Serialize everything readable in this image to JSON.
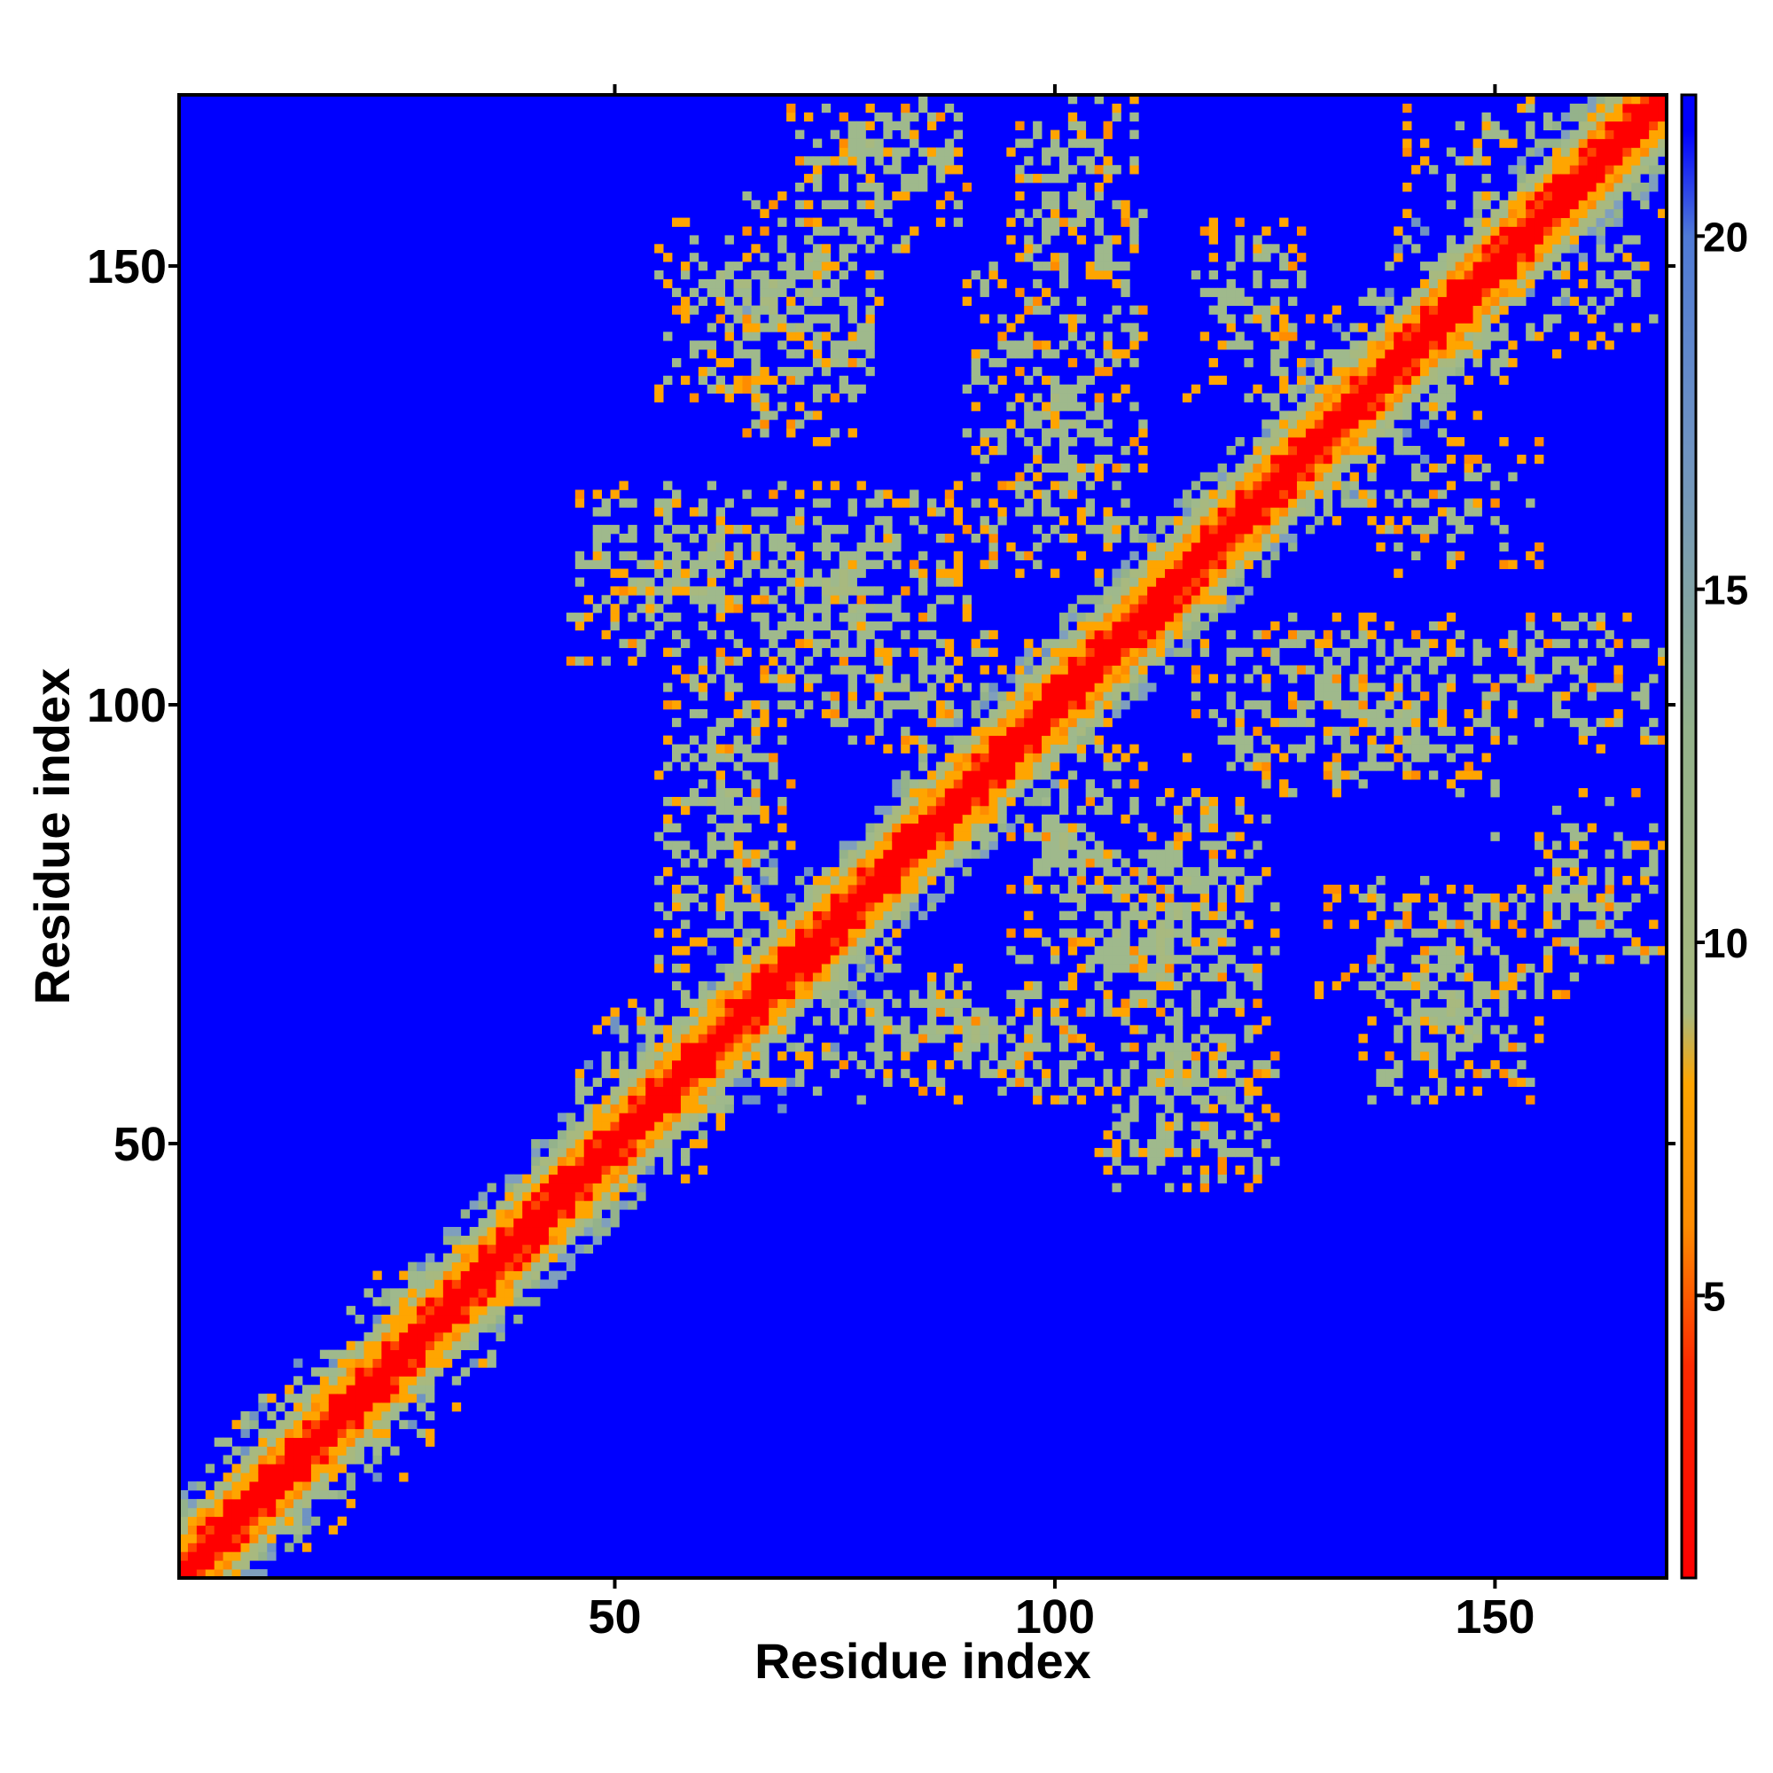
{
  "chart_data": {
    "type": "heatmap",
    "title": "",
    "xlabel": "Residue index",
    "ylabel": "Residue index",
    "xlim": [
      1,
      169
    ],
    "ylim": [
      1,
      169
    ],
    "x_ticks": [
      50,
      100,
      150
    ],
    "y_ticks": [
      50,
      100,
      150
    ],
    "colorbar": {
      "ticks": [
        5,
        10,
        15,
        20
      ],
      "range": [
        1,
        22
      ],
      "stops": [
        {
          "value": 1,
          "color": "#ff0000"
        },
        {
          "value": 4,
          "color": "#ff2a00"
        },
        {
          "value": 6,
          "color": "#ff8c00"
        },
        {
          "value": 8,
          "color": "#ffa500"
        },
        {
          "value": 9,
          "color": "#a8b97f"
        },
        {
          "value": 13,
          "color": "#94b28b"
        },
        {
          "value": 17,
          "color": "#6f93c2"
        },
        {
          "value": 20,
          "color": "#4f7ad6"
        },
        {
          "value": 21.5,
          "color": "#0000ff"
        }
      ]
    },
    "colors": {
      "background": "#0000ff",
      "near": "#ff0000",
      "mid": "#ffa500",
      "far": "#9fb98c"
    },
    "domains": [
      {
        "center": [
          20,
          20
        ],
        "half_width": 16
      },
      {
        "center": [
          64,
          64
        ],
        "half_width": 18
      },
      {
        "center": [
          95,
          95
        ],
        "half_width": 12
      },
      {
        "center": [
          115,
          115
        ],
        "half_width": 10
      },
      {
        "center": [
          140,
          140
        ],
        "half_width": 18
      }
    ],
    "off_diagonal_blocks": [
      {
        "x": [
          70,
          110
        ],
        "y": [
          55,
          70
        ],
        "intensity": 0.8
      },
      {
        "x": [
          100,
          125
        ],
        "y": [
          60,
          90
        ],
        "intensity": 0.85
      },
      {
        "x": [
          130,
          160
        ],
        "y": [
          65,
          80
        ],
        "intensity": 0.8
      },
      {
        "x": [
          150,
          169
        ],
        "y": [
          70,
          85
        ],
        "intensity": 0.7
      },
      {
        "x": [
          115,
          150
        ],
        "y": [
          90,
          110
        ],
        "intensity": 0.8
      },
      {
        "x": [
          155,
          169
        ],
        "y": [
          95,
          110
        ],
        "intensity": 0.6
      },
      {
        "x": [
          45,
          70
        ],
        "y": [
          105,
          125
        ],
        "intensity": 0.85
      },
      {
        "x": [
          70,
          95
        ],
        "y": [
          95,
          110
        ],
        "intensity": 0.75
      },
      {
        "x": [
          90,
          110
        ],
        "y": [
          120,
          135
        ],
        "intensity": 0.75
      },
      {
        "x": [
          55,
          75
        ],
        "y": [
          135,
          155
        ],
        "intensity": 0.85
      },
      {
        "x": [
          70,
          90
        ],
        "y": [
          155,
          169
        ],
        "intensity": 0.8
      },
      {
        "x": [
          95,
          110
        ],
        "y": [
          145,
          169
        ],
        "intensity": 0.75
      },
      {
        "x": [
          120,
          145
        ],
        "y": [
          125,
          145
        ],
        "intensity": 0.7
      },
      {
        "x": [
          115,
          130
        ],
        "y": [
          135,
          155
        ],
        "intensity": 0.6
      },
      {
        "x": [
          140,
          165
        ],
        "y": [
          155,
          169
        ],
        "intensity": 0.6
      }
    ]
  }
}
